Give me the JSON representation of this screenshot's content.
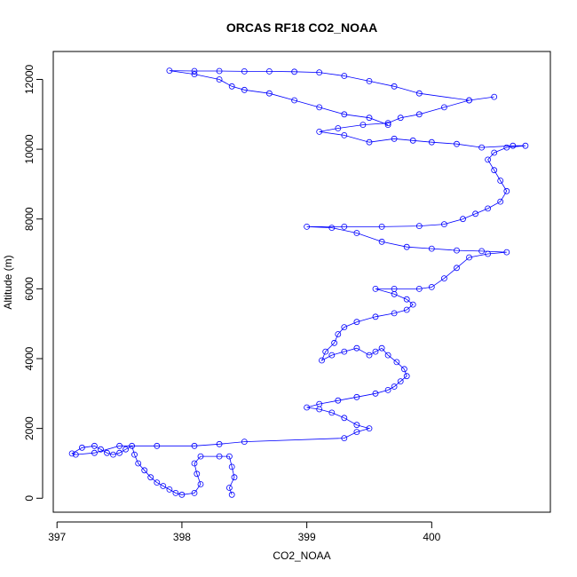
{
  "chart_data": {
    "type": "scatter",
    "title": "ORCAS RF18 CO2_NOAA",
    "xlabel": "CO2_NOAA",
    "ylabel": "Altitude (m)",
    "xlim": [
      396.97,
      400.95
    ],
    "ylim": [
      -400,
      12800
    ],
    "xticks": [
      397,
      398,
      399,
      400
    ],
    "yticks": [
      0,
      2000,
      4000,
      6000,
      8000,
      10000,
      12000
    ],
    "grid": false,
    "series": [
      {
        "style": "points-connected-by-lines",
        "marker": "open-circle",
        "color": "#0000ff",
        "points": [
          [
            398.4,
            100
          ],
          [
            398.38,
            300
          ],
          [
            398.42,
            600
          ],
          [
            398.4,
            900
          ],
          [
            398.38,
            1200
          ],
          [
            398.3,
            1200
          ],
          [
            398.15,
            1200
          ],
          [
            398.1,
            1000
          ],
          [
            398.12,
            700
          ],
          [
            398.15,
            400
          ],
          [
            398.1,
            150
          ],
          [
            398.0,
            100
          ],
          [
            397.95,
            150
          ],
          [
            397.9,
            250
          ],
          [
            397.85,
            350
          ],
          [
            397.8,
            450
          ],
          [
            397.75,
            600
          ],
          [
            397.7,
            800
          ],
          [
            397.65,
            1000
          ],
          [
            397.62,
            1250
          ],
          [
            397.6,
            1500
          ],
          [
            397.55,
            1400
          ],
          [
            397.5,
            1300
          ],
          [
            397.45,
            1250
          ],
          [
            397.4,
            1300
          ],
          [
            397.35,
            1400
          ],
          [
            397.3,
            1500
          ],
          [
            397.2,
            1450
          ],
          [
            397.12,
            1280
          ],
          [
            397.15,
            1250
          ],
          [
            397.3,
            1300
          ],
          [
            397.5,
            1500
          ],
          [
            397.8,
            1500
          ],
          [
            398.1,
            1500
          ],
          [
            398.3,
            1550
          ],
          [
            398.5,
            1620
          ],
          [
            399.3,
            1720
          ],
          [
            399.4,
            1900
          ],
          [
            399.5,
            2000
          ],
          [
            399.4,
            2100
          ],
          [
            399.3,
            2300
          ],
          [
            399.2,
            2450
          ],
          [
            399.1,
            2550
          ],
          [
            399.0,
            2600
          ],
          [
            399.1,
            2700
          ],
          [
            399.25,
            2800
          ],
          [
            399.4,
            2900
          ],
          [
            399.55,
            3000
          ],
          [
            399.65,
            3100
          ],
          [
            399.7,
            3200
          ],
          [
            399.75,
            3350
          ],
          [
            399.8,
            3500
          ],
          [
            399.78,
            3700
          ],
          [
            399.72,
            3900
          ],
          [
            399.65,
            4100
          ],
          [
            399.6,
            4300
          ],
          [
            399.55,
            4200
          ],
          [
            399.5,
            4100
          ],
          [
            399.4,
            4300
          ],
          [
            399.3,
            4200
          ],
          [
            399.2,
            4100
          ],
          [
            399.12,
            3950
          ],
          [
            399.15,
            4200
          ],
          [
            399.22,
            4450
          ],
          [
            399.25,
            4700
          ],
          [
            399.3,
            4900
          ],
          [
            399.4,
            5050
          ],
          [
            399.55,
            5200
          ],
          [
            399.7,
            5300
          ],
          [
            399.8,
            5400
          ],
          [
            399.85,
            5550
          ],
          [
            399.8,
            5700
          ],
          [
            399.7,
            5850
          ],
          [
            399.55,
            6000
          ],
          [
            399.7,
            6000
          ],
          [
            399.9,
            6000
          ],
          [
            400.0,
            6050
          ],
          [
            400.1,
            6300
          ],
          [
            400.2,
            6600
          ],
          [
            400.3,
            6900
          ],
          [
            400.45,
            7000
          ],
          [
            400.6,
            7050
          ],
          [
            400.4,
            7080
          ],
          [
            400.2,
            7100
          ],
          [
            400.0,
            7150
          ],
          [
            399.8,
            7200
          ],
          [
            399.6,
            7350
          ],
          [
            399.4,
            7600
          ],
          [
            399.2,
            7750
          ],
          [
            399.0,
            7780
          ],
          [
            399.3,
            7780
          ],
          [
            399.6,
            7780
          ],
          [
            399.9,
            7800
          ],
          [
            400.1,
            7850
          ],
          [
            400.25,
            8000
          ],
          [
            400.35,
            8150
          ],
          [
            400.45,
            8300
          ],
          [
            400.55,
            8500
          ],
          [
            400.6,
            8800
          ],
          [
            400.55,
            9100
          ],
          [
            400.5,
            9400
          ],
          [
            400.45,
            9700
          ],
          [
            400.5,
            9900
          ],
          [
            400.6,
            10050
          ],
          [
            400.75,
            10100
          ],
          [
            400.65,
            10100
          ],
          [
            400.4,
            10050
          ],
          [
            400.2,
            10150
          ],
          [
            400.0,
            10200
          ],
          [
            399.85,
            10250
          ],
          [
            399.7,
            10300
          ],
          [
            399.5,
            10200
          ],
          [
            399.3,
            10400
          ],
          [
            399.1,
            10500
          ],
          [
            399.25,
            10600
          ],
          [
            399.45,
            10700
          ],
          [
            399.65,
            10750
          ],
          [
            399.75,
            10900
          ],
          [
            399.9,
            11000
          ],
          [
            400.1,
            11200
          ],
          [
            400.3,
            11400
          ],
          [
            400.5,
            11500
          ],
          [
            400.3,
            11400
          ],
          [
            399.9,
            11600
          ],
          [
            399.7,
            11800
          ],
          [
            399.5,
            11950
          ],
          [
            399.3,
            12100
          ],
          [
            399.1,
            12200
          ],
          [
            398.9,
            12220
          ],
          [
            398.7,
            12230
          ],
          [
            398.5,
            12230
          ],
          [
            398.3,
            12240
          ],
          [
            398.1,
            12240
          ],
          [
            397.9,
            12250
          ],
          [
            398.1,
            12150
          ],
          [
            398.3,
            12000
          ],
          [
            398.4,
            11800
          ],
          [
            398.5,
            11700
          ],
          [
            398.7,
            11600
          ],
          [
            398.9,
            11400
          ],
          [
            399.1,
            11200
          ],
          [
            399.3,
            11000
          ],
          [
            399.5,
            10900
          ],
          [
            399.65,
            10700
          ]
        ]
      }
    ]
  }
}
